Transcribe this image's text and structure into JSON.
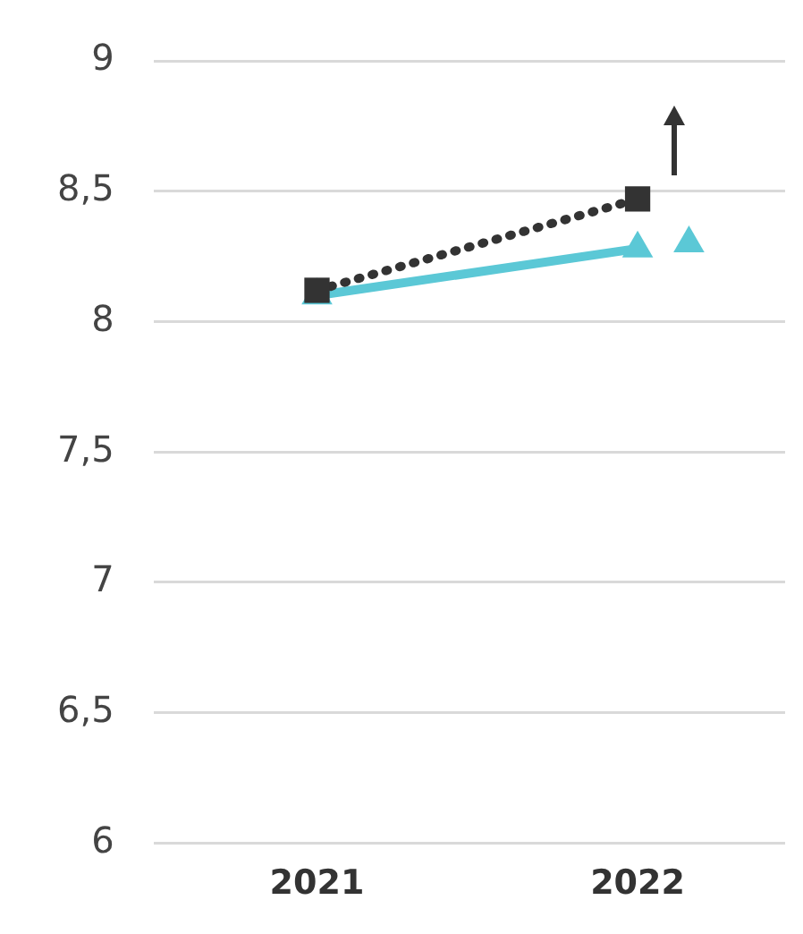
{
  "chart_data": {
    "type": "line",
    "x": [
      2021,
      2022
    ],
    "xlim": [
      2020.49,
      2022.46
    ],
    "xticks": [
      2021,
      2022
    ],
    "ylim": [
      6,
      9
    ],
    "yticks": [
      6,
      {
        "value": 6.5,
        "label": "6,5"
      },
      7,
      {
        "value": 7.5,
        "label": "7,5"
      },
      8,
      {
        "value": 8.5,
        "label": "8,5"
      },
      9
    ],
    "grid": "y",
    "legend": false,
    "series": [
      {
        "color": "#5bc8d6",
        "values": [
          8.1,
          8.28
        ],
        "marker": "triangle",
        "line_style": "solid"
      },
      {
        "color": "#333333",
        "values": [
          8.12,
          8.47
        ],
        "marker": "square",
        "line_style": "dotted"
      },
      {
        "type": "scatter",
        "x": [
          2022.16
        ],
        "color": "#5bc8d6",
        "values": [
          8.3
        ],
        "marker": "triangle"
      }
    ]
  }
}
